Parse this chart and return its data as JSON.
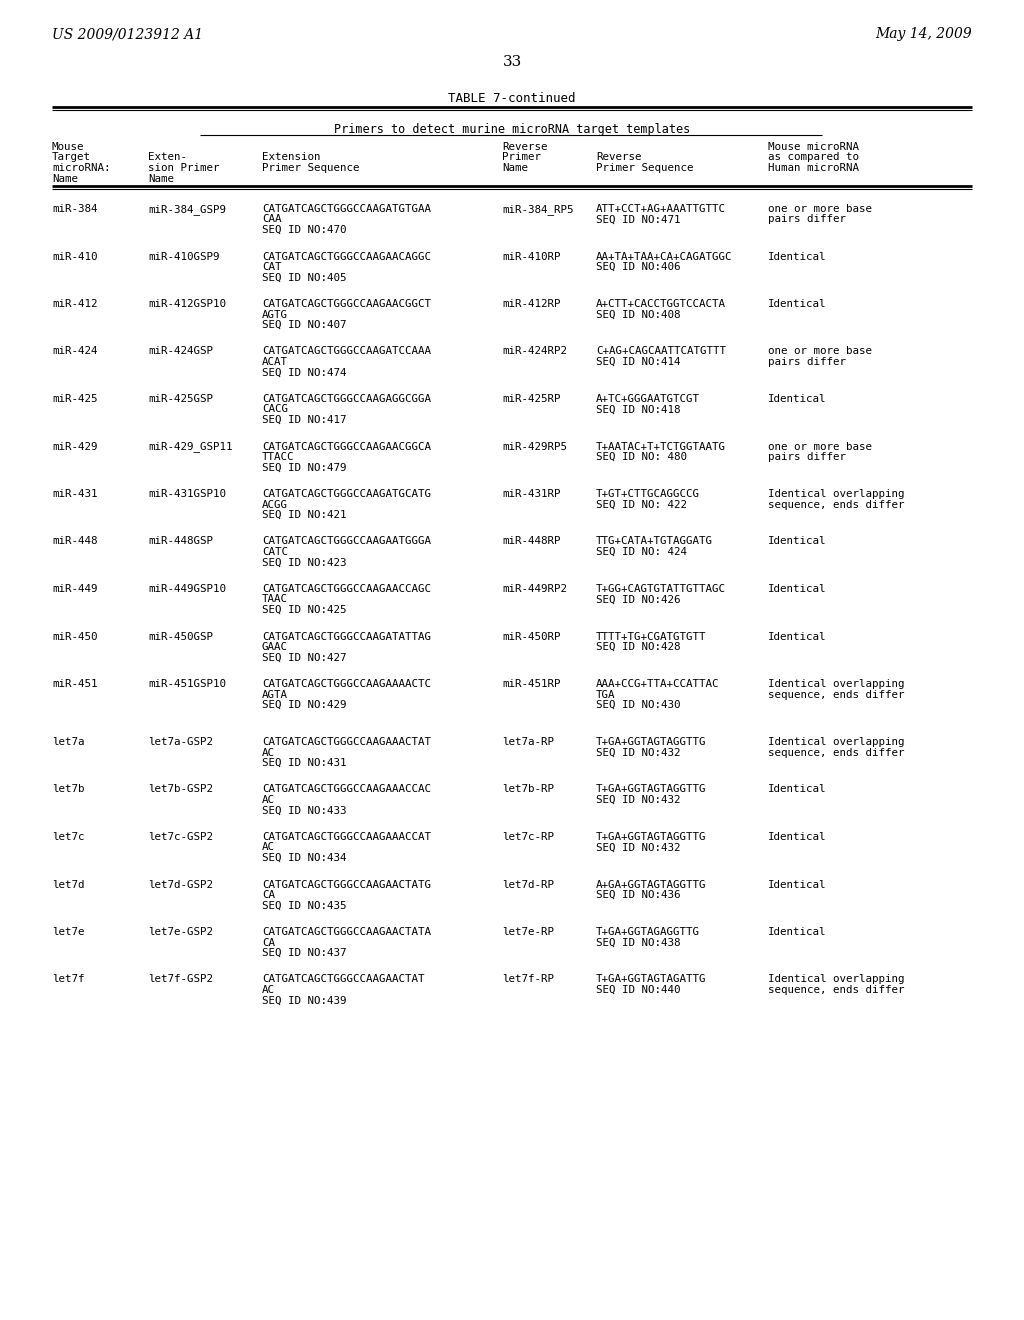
{
  "header_left": "US 2009/0123912 A1",
  "header_right": "May 14, 2009",
  "page_number": "33",
  "table_title": "TABLE 7-continued",
  "subtitle": "Primers to detect murine microRNA target templates",
  "col_headers_line1": [
    "Mouse",
    "",
    "",
    "Reverse",
    "",
    "Mouse microRNA"
  ],
  "col_headers_line2": [
    "Target",
    "Exten-",
    "Extension",
    "Primer",
    "Reverse",
    "as compared to"
  ],
  "col_headers_line3": [
    "microRNA:",
    "sion Primer",
    "Primer Sequence",
    "Name",
    "Primer Sequence",
    "Human microRNA"
  ],
  "col_headers_line4": [
    "Name",
    "Name",
    "",
    "",
    "",
    ""
  ],
  "rows": [
    {
      "col1": "miR-384",
      "col2": "miR-384_GSP9",
      "col3": "CATGATCAGCTGGGCCAAGATGTGAA",
      "col3b": "CAA",
      "col3c": "SEQ ID NO:470",
      "col4": "miR-384_RP5",
      "col5": "ATT+CCT+AG+AAATTGTTC",
      "col5b": "SEQ ID NO:471",
      "col6": "one or more base",
      "col6b": "pairs differ"
    },
    {
      "col1": "miR-410",
      "col2": "miR-410GSP9",
      "col3": "CATGATCAGCTGGGCCAAGAACAGGC",
      "col3b": "CAT",
      "col3c": "SEQ ID NO:405",
      "col4": "miR-410RP",
      "col5": "AA+TA+TAA+CA+CAGATGGC",
      "col5b": "SEQ ID NO:406",
      "col6": "Identical",
      "col6b": ""
    },
    {
      "col1": "miR-412",
      "col2": "miR-412GSP10",
      "col3": "CATGATCAGCTGGGCCAAGAACGGCT",
      "col3b": "AGTG",
      "col3c": "SEQ ID NO:407",
      "col4": "miR-412RP",
      "col5": "A+CTT+CACCTGGTCCACTA",
      "col5b": "SEQ ID NO:408",
      "col6": "Identical",
      "col6b": ""
    },
    {
      "col1": "miR-424",
      "col2": "miR-424GSP",
      "col3": "CATGATCAGCTGGGCCAAGATCCAAA",
      "col3b": "ACAT",
      "col3c": "SEQ ID NO:474",
      "col4": "miR-424RP2",
      "col5": "C+AG+CAGCAATTCATGTTT",
      "col5b": "SEQ ID NO:414",
      "col6": "one or more base",
      "col6b": "pairs differ"
    },
    {
      "col1": "miR-425",
      "col2": "miR-425GSP",
      "col3": "CATGATCAGCTGGGCCAAGAGGCGGA",
      "col3b": "CACG",
      "col3c": "SEQ ID NO:417",
      "col4": "miR-425RP",
      "col5": "A+TC+GGGAATGTCGT",
      "col5b": "SEQ ID NO:418",
      "col6": "Identical",
      "col6b": ""
    },
    {
      "col1": "miR-429",
      "col2": "miR-429_GSP11",
      "col3": "CATGATCAGCTGGGCCAAGAACGGCA",
      "col3b": "TTACC",
      "col3c": "SEQ ID NO:479",
      "col4": "miR-429RP5",
      "col5": "T+AATAC+T+TCTGGTAATG",
      "col5b": "SEQ ID NO: 480",
      "col6": "one or more base",
      "col6b": "pairs differ"
    },
    {
      "col1": "miR-431",
      "col2": "miR-431GSP10",
      "col3": "CATGATCAGCTGGGCCAAGATGCATG",
      "col3b": "ACGG",
      "col3c": "SEQ ID NO:421",
      "col4": "miR-431RP",
      "col5": "T+GT+CTTGCAGGCCG",
      "col5b": "SEQ ID NO: 422",
      "col6": "Identical overlapping",
      "col6b": "sequence, ends differ"
    },
    {
      "col1": "miR-448",
      "col2": "miR-448GSP",
      "col3": "CATGATCAGCTGGGCCAAGAATGGGA",
      "col3b": "CATC",
      "col3c": "SEQ ID NO:423",
      "col4": "miR-448RP",
      "col5": "TTG+CATA+TGTAGGATG",
      "col5b": "SEQ ID NO: 424",
      "col6": "Identical",
      "col6b": ""
    },
    {
      "col1": "miR-449",
      "col2": "miR-449GSP10",
      "col3": "CATGATCAGCTGGGCCAAGAACCAGC",
      "col3b": "TAAC",
      "col3c": "SEQ ID NO:425",
      "col4": "miR-449RP2",
      "col5": "T+GG+CAGTGTATTGTTAGC",
      "col5b": "SEQ ID NO:426",
      "col6": "Identical",
      "col6b": ""
    },
    {
      "col1": "miR-450",
      "col2": "miR-450GSP",
      "col3": "CATGATCAGCTGGGCCAAGATATTAG",
      "col3b": "GAAC",
      "col3c": "SEQ ID NO:427",
      "col4": "miR-450RP",
      "col5": "TTTT+TG+CGATGTGTT",
      "col5b": "SEQ ID NO:428",
      "col6": "Identical",
      "col6b": ""
    },
    {
      "col1": "miR-451",
      "col2": "miR-451GSP10",
      "col3": "CATGATCAGCTGGGCCAAGAAAACTC",
      "col3b": "AGTA",
      "col3c": "SEQ ID NO:429",
      "col4": "miR-451RP",
      "col5": "AAA+CCG+TTA+CCATTAC",
      "col5b": "TGA",
      "col5c": "SEQ ID NO:430",
      "col6": "Identical overlapping",
      "col6b": "sequence, ends differ"
    },
    {
      "col1": "let7a",
      "col2": "let7a-GSP2",
      "col3": "CATGATCAGCTGGGCCAAGAAACTAT",
      "col3b": "AC",
      "col3c": "SEQ ID NO:431",
      "col4": "let7a-RP",
      "col5": "T+GA+GGTAGTAGGTTG",
      "col5b": "SEQ ID NO:432",
      "col6": "Identical overlapping",
      "col6b": "sequence, ends differ"
    },
    {
      "col1": "let7b",
      "col2": "let7b-GSP2",
      "col3": "CATGATCAGCTGGGCCAAGAAACCAC",
      "col3b": "AC",
      "col3c": "SEQ ID NO:433",
      "col4": "let7b-RP",
      "col5": "T+GA+GGTAGTAGGTTG",
      "col5b": "SEQ ID NO:432",
      "col6": "Identical",
      "col6b": ""
    },
    {
      "col1": "let7c",
      "col2": "let7c-GSP2",
      "col3": "CATGATCAGCTGGGCCAAGAAACCAT",
      "col3b": "AC",
      "col3c": "SEQ ID NO:434",
      "col4": "let7c-RP",
      "col5": "T+GA+GGTAGTAGGTTG",
      "col5b": "SEQ ID NO:432",
      "col6": "Identical",
      "col6b": ""
    },
    {
      "col1": "let7d",
      "col2": "let7d-GSP2",
      "col3": "CATGATCAGCTGGGCCAAGAACTATG",
      "col3b": "CA",
      "col3c": "SEQ ID NO:435",
      "col4": "let7d-RP",
      "col5": "A+GA+GGTAGTAGGTTG",
      "col5b": "SEQ ID NO:436",
      "col6": "Identical",
      "col6b": ""
    },
    {
      "col1": "let7e",
      "col2": "let7e-GSP2",
      "col3": "CATGATCAGCTGGGCCAAGAACTATA",
      "col3b": "CA",
      "col3c": "SEQ ID NO:437",
      "col4": "let7e-RP",
      "col5": "T+GA+GGTAGAGGTTG",
      "col5b": "SEQ ID NO:438",
      "col6": "Identical",
      "col6b": ""
    },
    {
      "col1": "let7f",
      "col2": "let7f-GSP2",
      "col3": "CATGATCAGCTGGGCCAAGAACTAT",
      "col3b": "AC",
      "col3c": "SEQ ID NO:439",
      "col4": "let7f-RP",
      "col5": "T+GA+GGTAGTAGATTG",
      "col5b": "SEQ ID NO:440",
      "col6": "Identical overlapping",
      "col6b": "sequence, ends differ"
    }
  ]
}
